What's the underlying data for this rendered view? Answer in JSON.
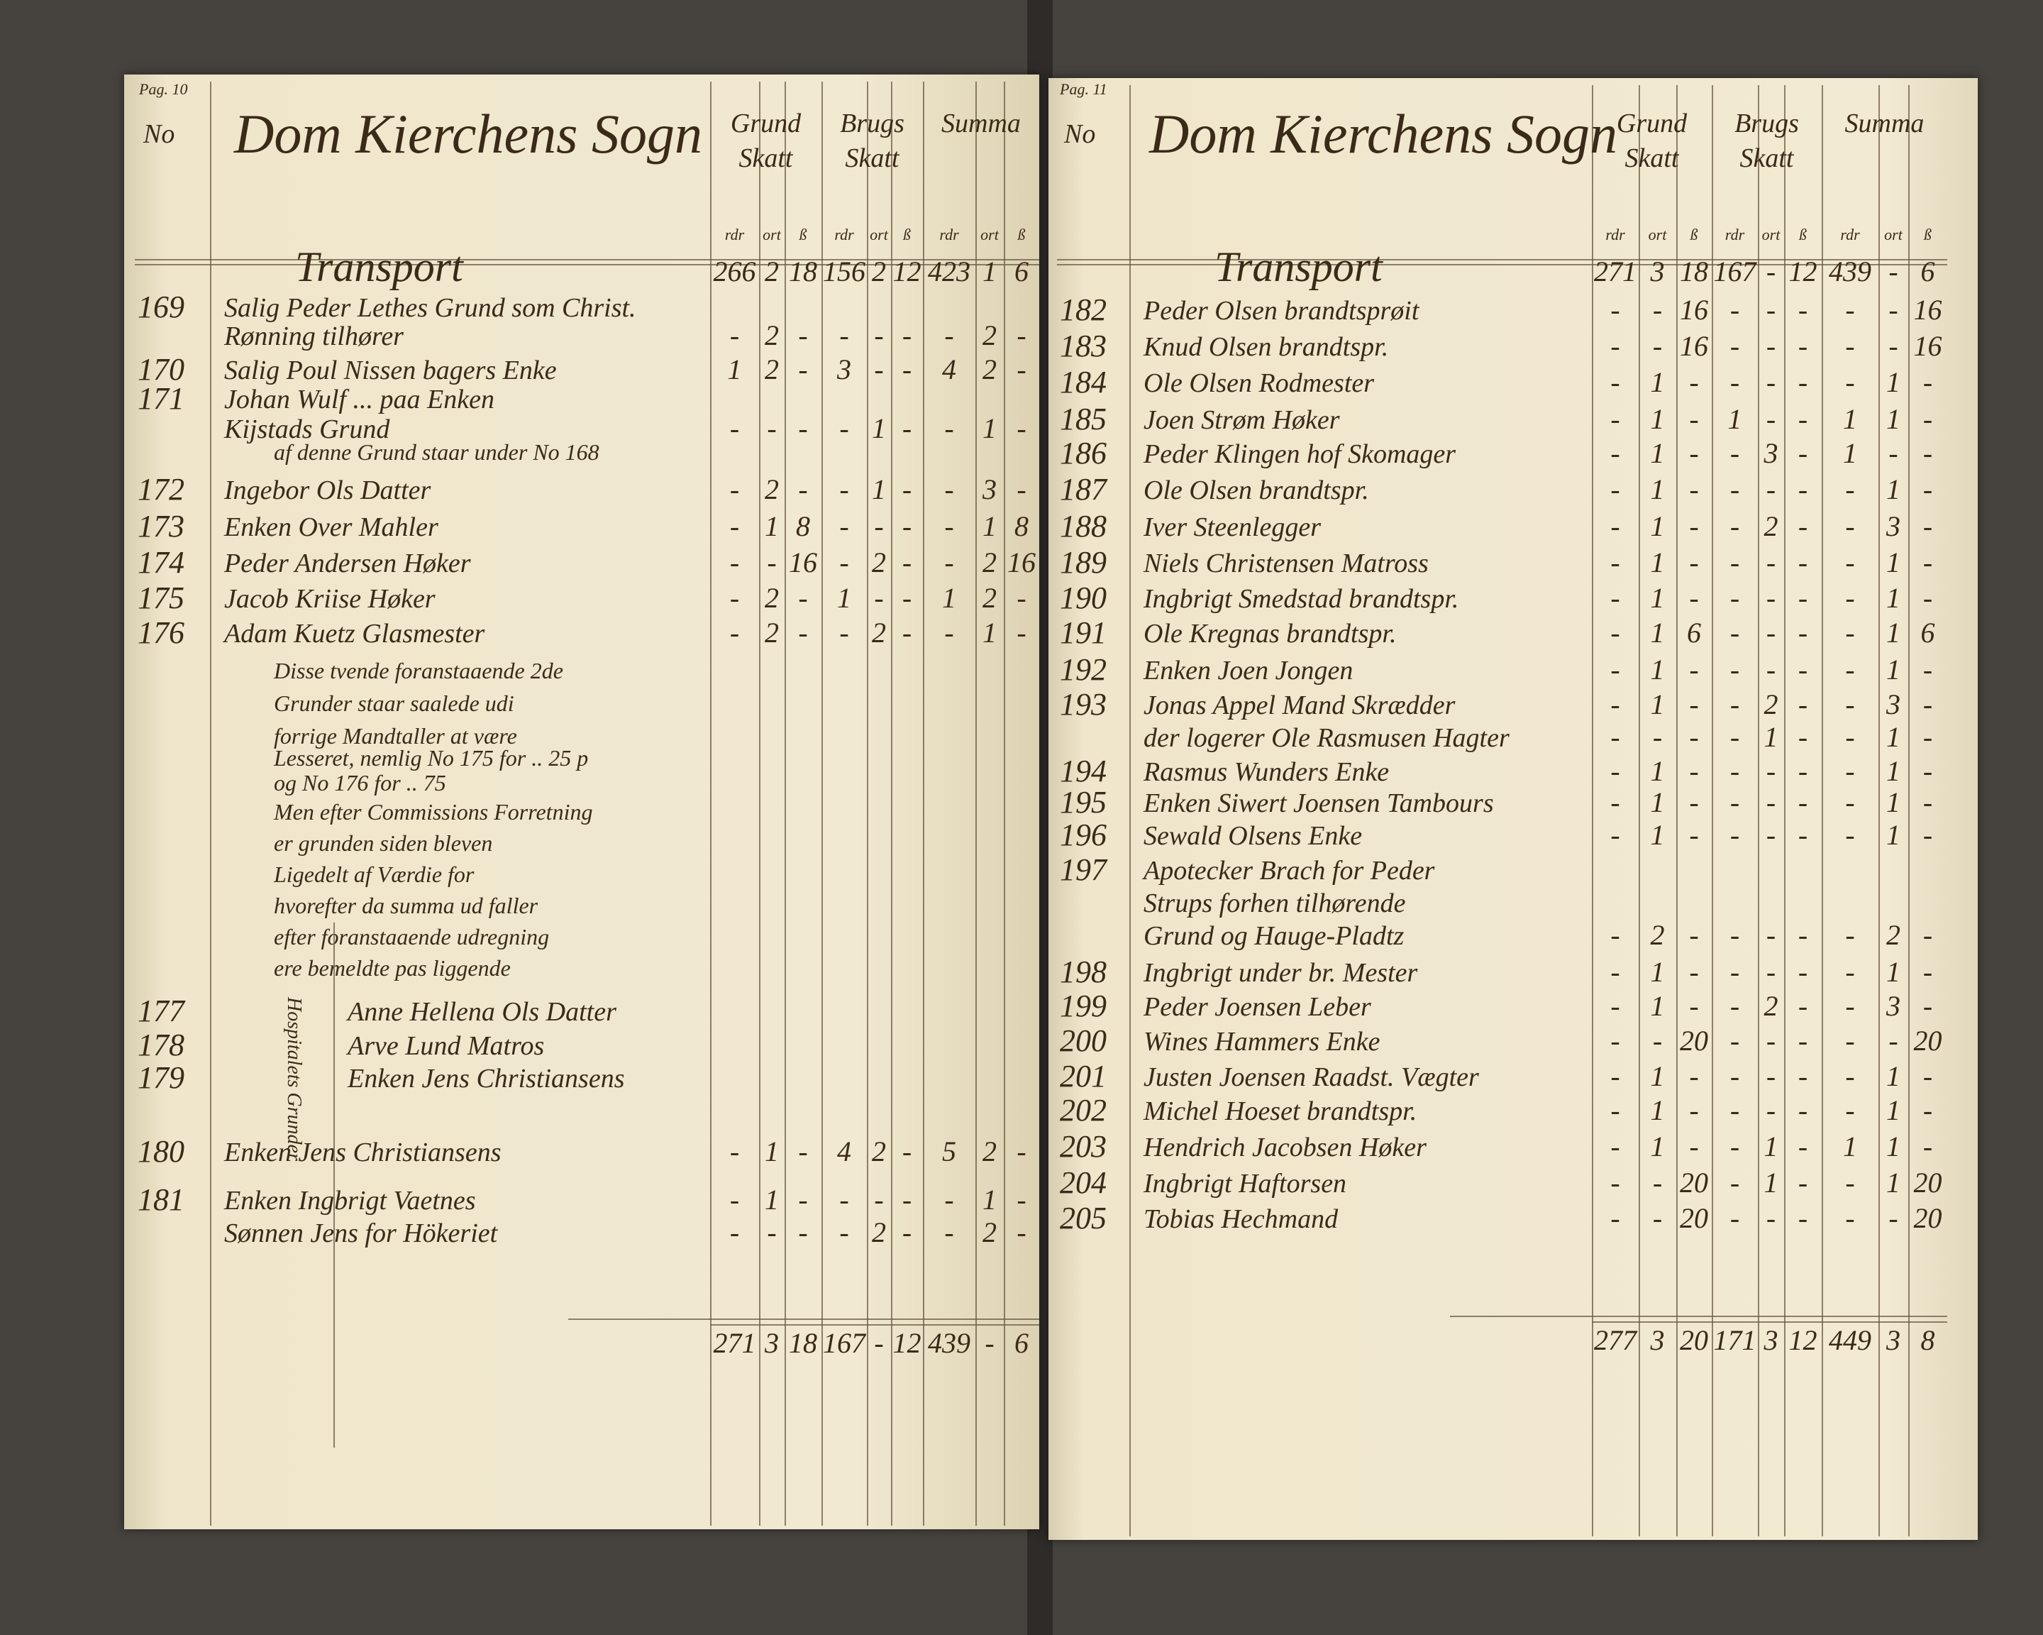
{
  "left_page": {
    "page_label": "Pag. 10",
    "no_label": "No",
    "title": "Dom Kierchens Sogn",
    "col_headers": [
      "Grund Skatt",
      "Brugs Skatt",
      "Summa"
    ],
    "unit_headers": [
      "rdr",
      "ort",
      "ß"
    ],
    "side_label": "Hospitalets Grunder",
    "rows": [
      {
        "num": "",
        "text": "Transport",
        "vals": [
          "266",
          "2",
          "18",
          "156",
          "2",
          "12",
          "423",
          "1",
          "6"
        ]
      },
      {
        "num": "169",
        "text": "Salig Peder Lethes Grund som Christ."
      },
      {
        "num": "",
        "text": "Rønning tilhører",
        "vals": [
          "-",
          "2",
          "-",
          "-",
          "-",
          "-",
          "-",
          "2",
          "-"
        ]
      },
      {
        "num": "170",
        "text": "Salig Poul Nissen bagers Enke",
        "vals": [
          "1",
          "2",
          "-",
          "3",
          "-",
          "-",
          "4",
          "2",
          "-"
        ]
      },
      {
        "num": "171",
        "text": "Johan Wulf ... paa Enken"
      },
      {
        "num": "",
        "text": "Kijstads Grund",
        "vals": [
          "-",
          "-",
          "-",
          "-",
          "1",
          "-",
          "-",
          "1",
          "-"
        ]
      },
      {
        "num": "",
        "text": "af denne Grund staar under No 168",
        "note": true
      },
      {
        "num": "172",
        "text": "Ingebor Ols Datter",
        "vals": [
          "-",
          "2",
          "-",
          "-",
          "1",
          "-",
          "-",
          "3",
          "-"
        ]
      },
      {
        "num": "173",
        "text": "Enken Over Mahler",
        "vals": [
          "-",
          "1",
          "8",
          "-",
          "-",
          "-",
          "-",
          "1",
          "8"
        ]
      },
      {
        "num": "174",
        "text": "Peder Andersen Høker",
        "vals": [
          "-",
          "-",
          "16",
          "-",
          "2",
          "-",
          "-",
          "2",
          "16"
        ]
      },
      {
        "num": "175",
        "text": "Jacob Kriise Høker",
        "vals": [
          "-",
          "2",
          "-",
          "1",
          "-",
          "-",
          "1",
          "2",
          "-"
        ]
      },
      {
        "num": "176",
        "text": "Adam Kuetz Glasmester",
        "vals": [
          "-",
          "2",
          "-",
          "-",
          "2",
          "-",
          "-",
          "1",
          "-"
        ]
      },
      {
        "num": "",
        "text": "Disse tvende foranstaaende 2de",
        "note": true
      },
      {
        "num": "",
        "text": "Grunder staar saalede udi",
        "note": true
      },
      {
        "num": "",
        "text": "forrige Mandtaller at være",
        "note": true
      },
      {
        "num": "",
        "text": "Lesseret, nemlig No 175 for .. 25 p",
        "note": true
      },
      {
        "num": "",
        "text": "og No 176 for .. 75",
        "note": true
      },
      {
        "num": "",
        "text": "Men efter Commissions Forretning",
        "note": true
      },
      {
        "num": "",
        "text": "er grunden siden bleven",
        "note": true
      },
      {
        "num": "",
        "text": "Ligedelt af Værdie for",
        "note": true
      },
      {
        "num": "",
        "text": "hvorefter da summa ud faller",
        "note": true
      },
      {
        "num": "",
        "text": "efter foranstaaende udregning",
        "note": true
      },
      {
        "num": "",
        "text": "ere   bemeldte pas liggende",
        "note": true
      },
      {
        "num": "177",
        "text": "Anne Hellena Ols Datter"
      },
      {
        "num": "178",
        "text": "Arve Lund Matros"
      },
      {
        "num": "179",
        "text": "Enken Jens Christiansens"
      },
      {
        "num": "180",
        "text": "Enken Jens Christiansens",
        "vals": [
          "-",
          "1",
          "-",
          "4",
          "2",
          "-",
          "5",
          "2",
          "-"
        ]
      },
      {
        "num": "181",
        "text": "Enken Ingbrigt Vaetnes",
        "vals": [
          "-",
          "1",
          "-",
          "-",
          "-",
          "-",
          "-",
          "1",
          "-"
        ]
      },
      {
        "num": "",
        "text": "Sønnen Jens for Hökeriet",
        "vals": [
          "-",
          "-",
          "-",
          "-",
          "2",
          "-",
          "-",
          "2",
          "-"
        ]
      }
    ],
    "total": [
      "271",
      "3",
      "18",
      "167",
      "-",
      "12",
      "439",
      "-",
      "6"
    ]
  },
  "right_page": {
    "page_label": "Pag. 11",
    "no_label": "No",
    "title": "Dom Kierchens Sogn",
    "col_headers": [
      "Grund Skatt",
      "Brugs Skatt",
      "Summa"
    ],
    "unit_headers": [
      "rdr",
      "ort",
      "ß"
    ],
    "rows": [
      {
        "num": "",
        "text": "Transport",
        "vals": [
          "271",
          "3",
          "18",
          "167",
          "-",
          "12",
          "439",
          "-",
          "6"
        ]
      },
      {
        "num": "182",
        "text": "Peder Olsen brandtsprøit",
        "vals": [
          "-",
          "-",
          "16",
          "-",
          "-",
          "-",
          "-",
          "-",
          "16"
        ]
      },
      {
        "num": "183",
        "text": "Knud Olsen brandtspr.",
        "vals": [
          "-",
          "-",
          "16",
          "-",
          "-",
          "-",
          "-",
          "-",
          "16"
        ]
      },
      {
        "num": "184",
        "text": "Ole Olsen Rodmester",
        "vals": [
          "-",
          "1",
          "-",
          "-",
          "-",
          "-",
          "-",
          "1",
          "-"
        ]
      },
      {
        "num": "185",
        "text": "Joen Strøm Høker",
        "vals": [
          "-",
          "1",
          "-",
          "1",
          "-",
          "-",
          "1",
          "1",
          "-"
        ]
      },
      {
        "num": "186",
        "text": "Peder Klingen hof Skomager",
        "vals": [
          "-",
          "1",
          "-",
          "-",
          "3",
          "-",
          "1",
          "-",
          "-"
        ]
      },
      {
        "num": "187",
        "text": "Ole Olsen brandtspr.",
        "vals": [
          "-",
          "1",
          "-",
          "-",
          "-",
          "-",
          "-",
          "1",
          "-"
        ]
      },
      {
        "num": "188",
        "text": "Iver Steenlegger",
        "vals": [
          "-",
          "1",
          "-",
          "-",
          "2",
          "-",
          "-",
          "3",
          "-"
        ]
      },
      {
        "num": "189",
        "text": "Niels Christensen Matross",
        "vals": [
          "-",
          "1",
          "-",
          "-",
          "-",
          "-",
          "-",
          "1",
          "-"
        ]
      },
      {
        "num": "190",
        "text": "Ingbrigt Smedstad brandtspr.",
        "vals": [
          "-",
          "1",
          "-",
          "-",
          "-",
          "-",
          "-",
          "1",
          "-"
        ]
      },
      {
        "num": "191",
        "text": "Ole Kregnas brandtspr.",
        "vals": [
          "-",
          "1",
          "6",
          "-",
          "-",
          "-",
          "-",
          "1",
          "6"
        ]
      },
      {
        "num": "192",
        "text": "Enken Joen Jongen",
        "vals": [
          "-",
          "1",
          "-",
          "-",
          "-",
          "-",
          "-",
          "1",
          "-"
        ]
      },
      {
        "num": "193",
        "text": "Jonas Appel Mand Skrædder",
        "vals": [
          "-",
          "1",
          "-",
          "-",
          "2",
          "-",
          "-",
          "3",
          "-"
        ]
      },
      {
        "num": "",
        "text": "der logerer Ole Rasmusen Hagter",
        "vals": [
          "-",
          "-",
          "-",
          "-",
          "1",
          "-",
          "-",
          "1",
          "-"
        ]
      },
      {
        "num": "194",
        "text": "Rasmus Wunders Enke",
        "vals": [
          "-",
          "1",
          "-",
          "-",
          "-",
          "-",
          "-",
          "1",
          "-"
        ]
      },
      {
        "num": "195",
        "text": "Enken Siwert Joensen Tambours",
        "vals": [
          "-",
          "1",
          "-",
          "-",
          "-",
          "-",
          "-",
          "1",
          "-"
        ]
      },
      {
        "num": "196",
        "text": "Sewald Olsens Enke",
        "vals": [
          "-",
          "1",
          "-",
          "-",
          "-",
          "-",
          "-",
          "1",
          "-"
        ]
      },
      {
        "num": "197",
        "text": "Apotecker Brach for Peder"
      },
      {
        "num": "",
        "text": "Strups forhen tilhørende"
      },
      {
        "num": "",
        "text": "Grund og Hauge-Pladtz",
        "vals": [
          "-",
          "2",
          "-",
          "-",
          "-",
          "-",
          "-",
          "2",
          "-"
        ]
      },
      {
        "num": "198",
        "text": "Ingbrigt under br. Mester",
        "vals": [
          "-",
          "1",
          "-",
          "-",
          "-",
          "-",
          "-",
          "1",
          "-"
        ]
      },
      {
        "num": "199",
        "text": "Peder Joensen Leber",
        "vals": [
          "-",
          "1",
          "-",
          "-",
          "2",
          "-",
          "-",
          "3",
          "-"
        ]
      },
      {
        "num": "200",
        "text": "Wines Hammers Enke",
        "vals": [
          "-",
          "-",
          "20",
          "-",
          "-",
          "-",
          "-",
          "-",
          "20"
        ]
      },
      {
        "num": "201",
        "text": "Justen Joensen Raadst. Vægter",
        "vals": [
          "-",
          "1",
          "-",
          "-",
          "-",
          "-",
          "-",
          "1",
          "-"
        ]
      },
      {
        "num": "202",
        "text": "Michel Hoeset brandtspr.",
        "vals": [
          "-",
          "1",
          "-",
          "-",
          "-",
          "-",
          "-",
          "1",
          "-"
        ]
      },
      {
        "num": "203",
        "text": "Hendrich Jacobsen Høker",
        "vals": [
          "-",
          "1",
          "-",
          "-",
          "1",
          "-",
          "1",
          "1",
          "-"
        ]
      },
      {
        "num": "204",
        "text": "Ingbrigt Haftorsen",
        "vals": [
          "-",
          "-",
          "20",
          "-",
          "1",
          "-",
          "-",
          "1",
          "20"
        ]
      },
      {
        "num": "205",
        "text": "Tobias Hechmand",
        "vals": [
          "-",
          "-",
          "20",
          "-",
          "-",
          "-",
          "-",
          "-",
          "20"
        ]
      }
    ],
    "total": [
      "277",
      "3",
      "20",
      "171",
      "3",
      "12",
      "449",
      "3",
      "8"
    ]
  },
  "colors": {
    "paper": "#efe6cb",
    "ink": "#3a2a18",
    "background": "#46423e"
  }
}
